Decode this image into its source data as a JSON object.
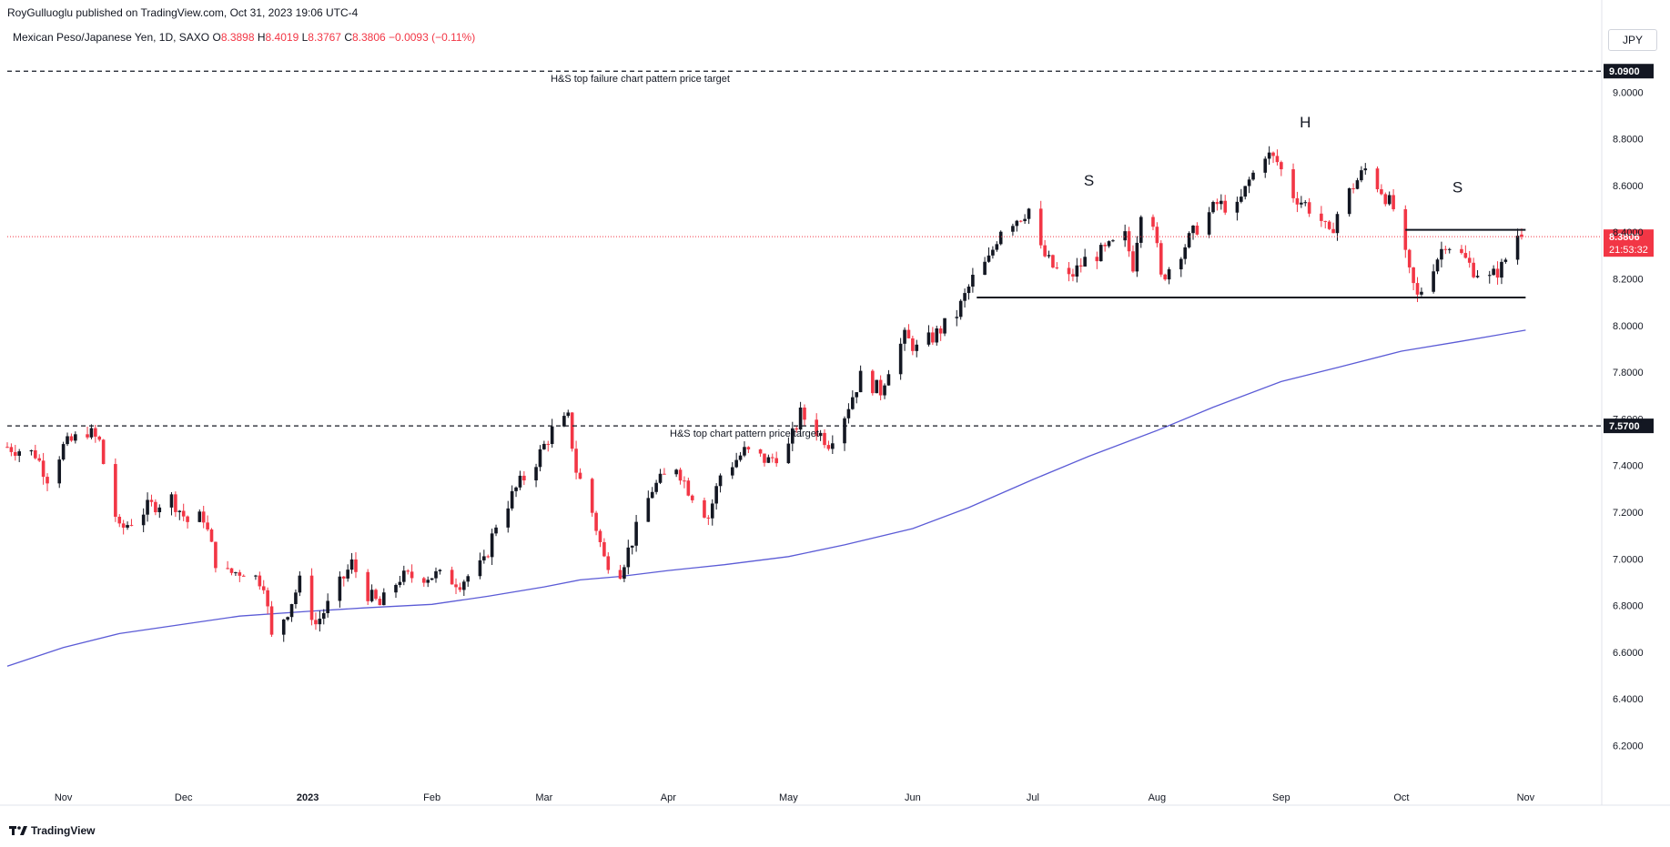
{
  "header": {
    "published_text": "RoyGulluoglu published on TradingView.com, Oct 31, 2023 19:06 UTC-4"
  },
  "symbol": {
    "name": "Mexican Peso/Japanese Yen, 1D, SAXO",
    "o_label": "O",
    "o_value": "8.3898",
    "h_label": "H",
    "h_value": "8.4019",
    "l_label": "L",
    "l_value": "8.3767",
    "c_label": "C",
    "c_value": "8.3806",
    "change": "−0.0093 (−0.11%)"
  },
  "currency_button": "JPY",
  "footer": {
    "brand": "TradingView"
  },
  "colors": {
    "up": "#131722",
    "down": "#f23645",
    "ma": "#5b5bd6",
    "price_label_bg": "#f23645",
    "target_label_bg": "#131722"
  },
  "chart_data": {
    "type": "candlestick",
    "title": "Mexican Peso/Japanese Yen, 1D, SAXO",
    "y_range": [
      6.05,
      9.2
    ],
    "y_ticks": [
      "9.0000",
      "8.8000",
      "8.6000",
      "8.4000",
      "8.2000",
      "8.0000",
      "7.8000",
      "7.6000",
      "7.4000",
      "7.2000",
      "7.0000",
      "6.8000",
      "6.6000",
      "6.4000",
      "6.2000"
    ],
    "x_ticks": [
      {
        "label": "Nov",
        "date": "2022-11-01",
        "bold": false
      },
      {
        "label": "Dec",
        "date": "2022-12-01",
        "bold": false
      },
      {
        "label": "2023",
        "date": "2023-01-01",
        "bold": true
      },
      {
        "label": "Feb",
        "date": "2023-02-01",
        "bold": false
      },
      {
        "label": "Mar",
        "date": "2023-03-01",
        "bold": false
      },
      {
        "label": "Apr",
        "date": "2023-04-01",
        "bold": false
      },
      {
        "label": "May",
        "date": "2023-05-01",
        "bold": false
      },
      {
        "label": "Jun",
        "date": "2023-06-01",
        "bold": false
      },
      {
        "label": "Jul",
        "date": "2023-07-01",
        "bold": false
      },
      {
        "label": "Aug",
        "date": "2023-08-01",
        "bold": false
      },
      {
        "label": "Sep",
        "date": "2023-09-01",
        "bold": false
      },
      {
        "label": "Oct",
        "date": "2023-10-01",
        "bold": false
      },
      {
        "label": "Nov",
        "date": "2023-11-01",
        "bold": false
      }
    ],
    "x_range": [
      "2022-10-18",
      "2023-11-20"
    ],
    "close_path": [
      {
        "date": "2022-10-18",
        "close": 7.48
      },
      {
        "date": "2022-10-25",
        "close": 7.45
      },
      {
        "date": "2022-10-28",
        "close": 7.35
      },
      {
        "date": "2022-11-01",
        "close": 7.48
      },
      {
        "date": "2022-11-07",
        "close": 7.55
      },
      {
        "date": "2022-11-10",
        "close": 7.5
      },
      {
        "date": "2022-11-12",
        "close": 7.32
      },
      {
        "date": "2022-11-15",
        "close": 7.12
      },
      {
        "date": "2022-11-22",
        "close": 7.22
      },
      {
        "date": "2022-11-28",
        "close": 7.26
      },
      {
        "date": "2022-12-02",
        "close": 7.16
      },
      {
        "date": "2022-12-06",
        "close": 7.18
      },
      {
        "date": "2022-12-08",
        "close": 7.05
      },
      {
        "date": "2022-12-10",
        "close": 6.93
      },
      {
        "date": "2022-12-16",
        "close": 6.95
      },
      {
        "date": "2022-12-21",
        "close": 6.9
      },
      {
        "date": "2022-12-23",
        "close": 6.66
      },
      {
        "date": "2022-12-27",
        "close": 6.78
      },
      {
        "date": "2022-12-30",
        "close": 6.9
      },
      {
        "date": "2023-01-03",
        "close": 6.72
      },
      {
        "date": "2023-01-06",
        "close": 6.8
      },
      {
        "date": "2023-01-12",
        "close": 6.98
      },
      {
        "date": "2023-01-16",
        "close": 6.85
      },
      {
        "date": "2023-01-19",
        "close": 6.8
      },
      {
        "date": "2023-01-24",
        "close": 6.92
      },
      {
        "date": "2023-02-02",
        "close": 6.93
      },
      {
        "date": "2023-02-08",
        "close": 6.9
      },
      {
        "date": "2023-02-14",
        "close": 6.98
      },
      {
        "date": "2023-02-17",
        "close": 7.15
      },
      {
        "date": "2023-02-22",
        "close": 7.3
      },
      {
        "date": "2023-02-27",
        "close": 7.42
      },
      {
        "date": "2023-03-03",
        "close": 7.55
      },
      {
        "date": "2023-03-07",
        "close": 7.6
      },
      {
        "date": "2023-03-09",
        "close": 7.38
      },
      {
        "date": "2023-03-13",
        "close": 7.2
      },
      {
        "date": "2023-03-16",
        "close": 7.0
      },
      {
        "date": "2023-03-20",
        "close": 6.95
      },
      {
        "date": "2023-03-23",
        "close": 7.08
      },
      {
        "date": "2023-03-28",
        "close": 7.3
      },
      {
        "date": "2023-04-03",
        "close": 7.4
      },
      {
        "date": "2023-04-06",
        "close": 7.3
      },
      {
        "date": "2023-04-11",
        "close": 7.18
      },
      {
        "date": "2023-04-14",
        "close": 7.36
      },
      {
        "date": "2023-04-20",
        "close": 7.46
      },
      {
        "date": "2023-04-26",
        "close": 7.42
      },
      {
        "date": "2023-05-01",
        "close": 7.48
      },
      {
        "date": "2023-05-04",
        "close": 7.62
      },
      {
        "date": "2023-05-08",
        "close": 7.55
      },
      {
        "date": "2023-05-11",
        "close": 7.5
      },
      {
        "date": "2023-05-15",
        "close": 7.62
      },
      {
        "date": "2023-05-19",
        "close": 7.78
      },
      {
        "date": "2023-05-24",
        "close": 7.72
      },
      {
        "date": "2023-05-26",
        "close": 7.82
      },
      {
        "date": "2023-05-30",
        "close": 7.95
      },
      {
        "date": "2023-06-02",
        "close": 7.9
      },
      {
        "date": "2023-06-06",
        "close": 7.95
      },
      {
        "date": "2023-06-12",
        "close": 8.05
      },
      {
        "date": "2023-06-16",
        "close": 8.2
      },
      {
        "date": "2023-06-20",
        "close": 8.28
      },
      {
        "date": "2023-06-23",
        "close": 8.42
      },
      {
        "date": "2023-06-28",
        "close": 8.47
      },
      {
        "date": "2023-06-30",
        "close": 8.5
      },
      {
        "date": "2023-07-03",
        "close": 8.32
      },
      {
        "date": "2023-07-06",
        "close": 8.25
      },
      {
        "date": "2023-07-10",
        "close": 8.2
      },
      {
        "date": "2023-07-14",
        "close": 8.28
      },
      {
        "date": "2023-07-19",
        "close": 8.32
      },
      {
        "date": "2023-07-24",
        "close": 8.38
      },
      {
        "date": "2023-07-26",
        "close": 8.26
      },
      {
        "date": "2023-07-28",
        "close": 8.5
      },
      {
        "date": "2023-07-31",
        "close": 8.45
      },
      {
        "date": "2023-08-02",
        "close": 8.2
      },
      {
        "date": "2023-08-07",
        "close": 8.32
      },
      {
        "date": "2023-08-11",
        "close": 8.42
      },
      {
        "date": "2023-08-16",
        "close": 8.52
      },
      {
        "date": "2023-08-21",
        "close": 8.5
      },
      {
        "date": "2023-08-24",
        "close": 8.62
      },
      {
        "date": "2023-08-28",
        "close": 8.74
      },
      {
        "date": "2023-08-31",
        "close": 8.7
      },
      {
        "date": "2023-09-04",
        "close": 8.56
      },
      {
        "date": "2023-09-07",
        "close": 8.52
      },
      {
        "date": "2023-09-11",
        "close": 8.45
      },
      {
        "date": "2023-09-13",
        "close": 8.38
      },
      {
        "date": "2023-09-15",
        "close": 8.48
      },
      {
        "date": "2023-09-19",
        "close": 8.6
      },
      {
        "date": "2023-09-22",
        "close": 8.67
      },
      {
        "date": "2023-09-26",
        "close": 8.58
      },
      {
        "date": "2023-09-29",
        "close": 8.5
      },
      {
        "date": "2023-10-03",
        "close": 8.22
      },
      {
        "date": "2023-10-05",
        "close": 8.12
      },
      {
        "date": "2023-10-09",
        "close": 8.26
      },
      {
        "date": "2023-10-12",
        "close": 8.36
      },
      {
        "date": "2023-10-16",
        "close": 8.3
      },
      {
        "date": "2023-10-19",
        "close": 8.24
      },
      {
        "date": "2023-10-23",
        "close": 8.2
      },
      {
        "date": "2023-10-26",
        "close": 8.25
      },
      {
        "date": "2023-10-30",
        "close": 8.39
      },
      {
        "date": "2023-10-31",
        "close": 8.38
      }
    ],
    "moving_average": [
      {
        "date": "2022-10-18",
        "value": 6.54
      },
      {
        "date": "2022-11-01",
        "value": 6.62
      },
      {
        "date": "2022-11-15",
        "value": 6.68
      },
      {
        "date": "2022-12-01",
        "value": 6.72
      },
      {
        "date": "2022-12-15",
        "value": 6.755
      },
      {
        "date": "2023-01-01",
        "value": 6.775
      },
      {
        "date": "2023-01-15",
        "value": 6.79
      },
      {
        "date": "2023-02-01",
        "value": 6.805
      },
      {
        "date": "2023-02-15",
        "value": 6.84
      },
      {
        "date": "2023-03-01",
        "value": 6.88
      },
      {
        "date": "2023-03-10",
        "value": 6.91
      },
      {
        "date": "2023-03-20",
        "value": 6.925
      },
      {
        "date": "2023-04-01",
        "value": 6.95
      },
      {
        "date": "2023-04-15",
        "value": 6.975
      },
      {
        "date": "2023-05-01",
        "value": 7.01
      },
      {
        "date": "2023-05-15",
        "value": 7.06
      },
      {
        "date": "2023-06-01",
        "value": 7.13
      },
      {
        "date": "2023-06-15",
        "value": 7.22
      },
      {
        "date": "2023-07-01",
        "value": 7.34
      },
      {
        "date": "2023-07-15",
        "value": 7.44
      },
      {
        "date": "2023-08-01",
        "value": 7.55
      },
      {
        "date": "2023-08-15",
        "value": 7.65
      },
      {
        "date": "2023-09-01",
        "value": 7.76
      },
      {
        "date": "2023-09-15",
        "value": 7.82
      },
      {
        "date": "2023-10-01",
        "value": 7.89
      },
      {
        "date": "2023-10-15",
        "value": 7.93
      },
      {
        "date": "2023-11-01",
        "value": 7.98
      }
    ],
    "horizontal_levels": [
      {
        "name": "failure-target",
        "value": 9.09,
        "label": "9.0900",
        "style": "dashed",
        "annotation": "H&S top failure chart pattern price target",
        "annotation_date": "2023-03-25"
      },
      {
        "name": "pattern-target",
        "value": 7.57,
        "label": "7.5700",
        "style": "dashed",
        "annotation": "H&S top chart pattern price target",
        "annotation_date": "2023-04-20"
      }
    ],
    "pattern_lines": [
      {
        "name": "neckline",
        "value": 8.12,
        "from": "2023-06-17",
        "to": "2023-11-01"
      },
      {
        "name": "shoulder-resistance",
        "value": 8.41,
        "from": "2023-10-02",
        "to": "2023-11-01"
      }
    ],
    "pattern_labels": [
      {
        "text": "S",
        "date": "2023-07-15",
        "value": 8.6
      },
      {
        "text": "H",
        "date": "2023-09-07",
        "value": 8.85
      },
      {
        "text": "S",
        "date": "2023-10-15",
        "value": 8.57
      }
    ],
    "last_price": {
      "value": 8.3806,
      "label": "8.3806",
      "countdown": "21:53:32"
    }
  }
}
